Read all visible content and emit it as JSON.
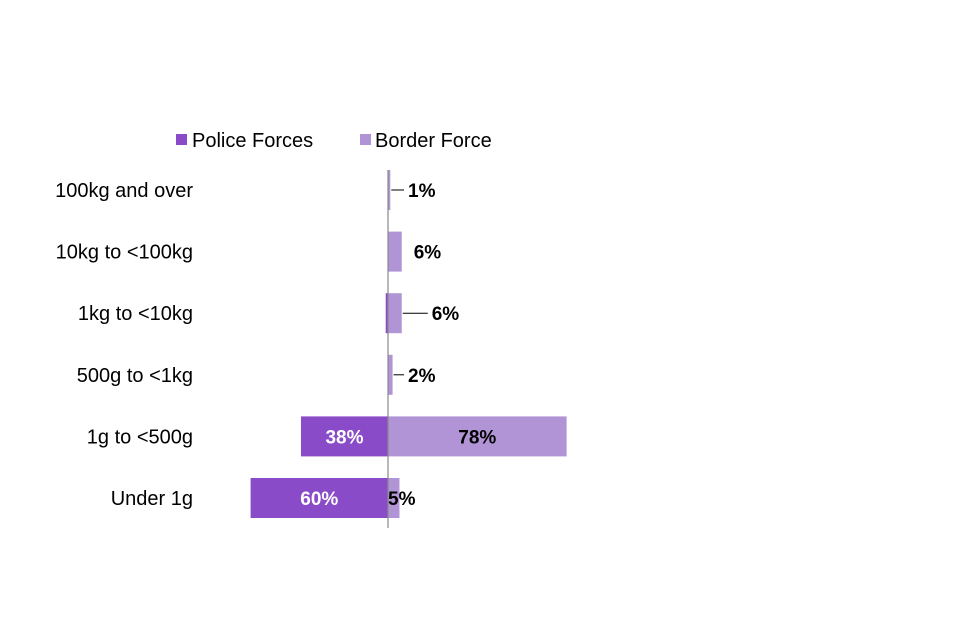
{
  "chart_data": {
    "type": "bar",
    "orientation": "horizontal",
    "layout": "diverging",
    "title": "",
    "xlabel": "",
    "ylabel": "",
    "unit": "%",
    "categories": [
      "100kg and over",
      "10kg to <100kg",
      "1kg to <10kg",
      "500g to <1kg",
      "1g to <500g",
      "Under 1g"
    ],
    "series": [
      {
        "name": "Police Forces",
        "direction": "left",
        "color": "#8a4bc8",
        "values": [
          0,
          0,
          1,
          0,
          38,
          60
        ],
        "labels": [
          "",
          "",
          "",
          "",
          "38%",
          "60%"
        ],
        "label_color": "#ffffff"
      },
      {
        "name": "Border Force",
        "direction": "right",
        "color": "#b194d6",
        "values": [
          1,
          6,
          6,
          2,
          78,
          5
        ],
        "labels": [
          "1%",
          "6%",
          "6%",
          "2%",
          "78%",
          "5%"
        ],
        "label_color": "#000000"
      }
    ],
    "legend": {
      "position": "top"
    },
    "grid": false,
    "axis_color": "#888888"
  }
}
